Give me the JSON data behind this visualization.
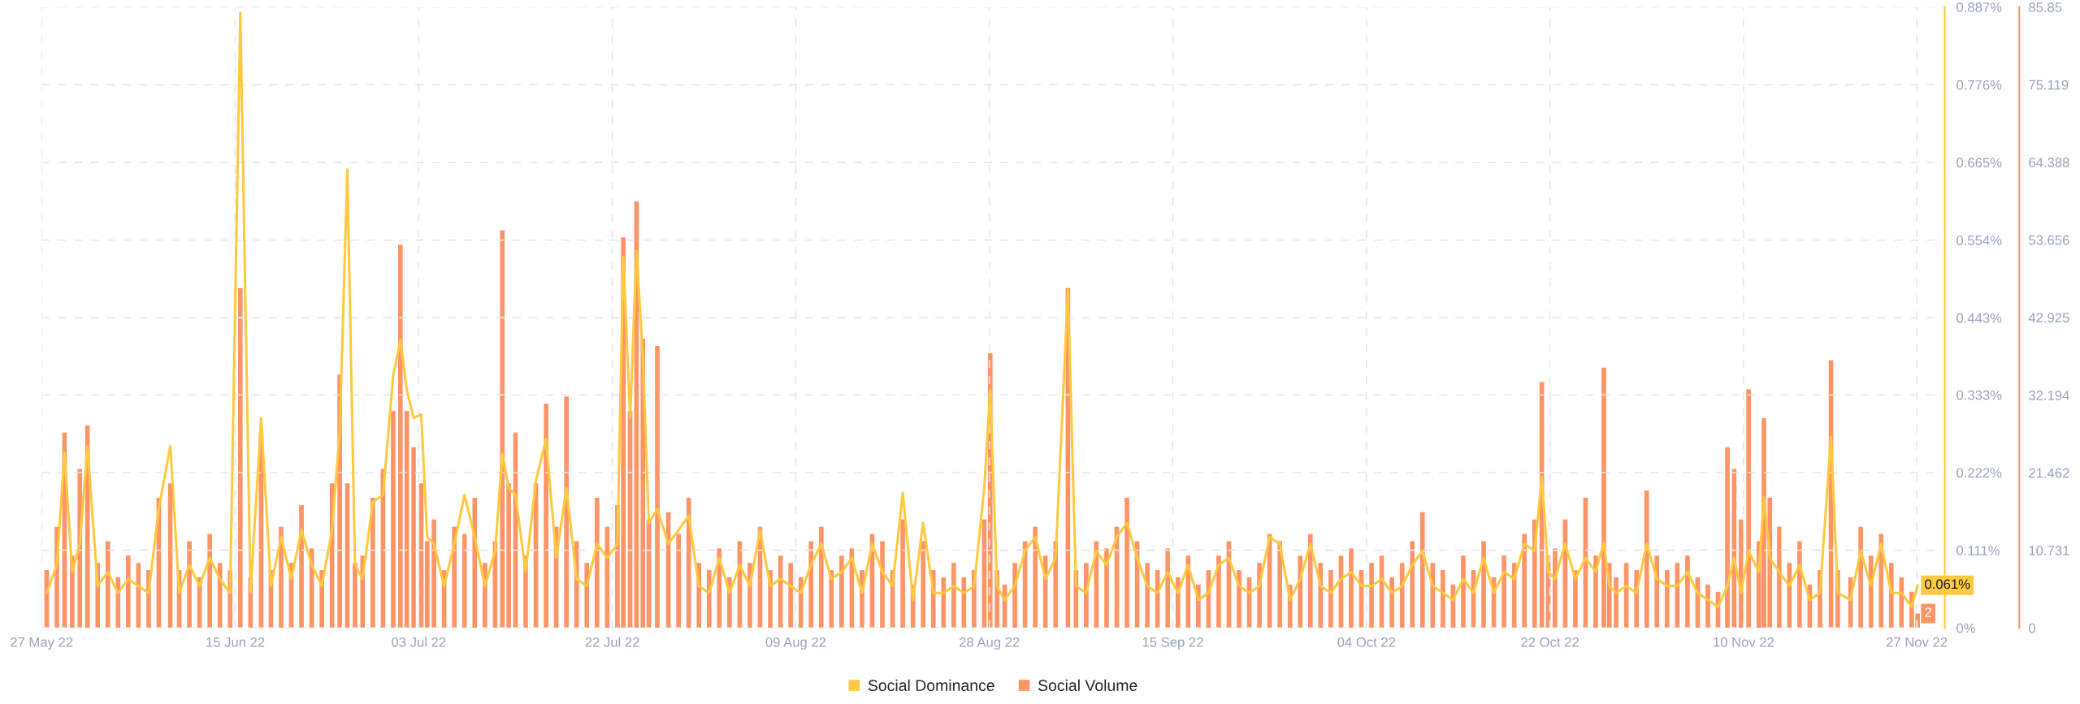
{
  "chart_data": {
    "type": "line",
    "x": [
      "2022-05-27T12:00",
      "2022-05-28T12:00",
      "2022-05-29T06:00",
      "2022-05-30T00:00",
      "2022-05-30T18:00",
      "2022-05-31T12:00",
      "2022-06-01T12:00",
      "2022-06-02T12:00",
      "2022-06-03T12:00",
      "2022-06-04T12:00",
      "2022-06-05T12:00",
      "2022-06-06T12:00",
      "2022-06-07T12:00",
      "2022-06-08T15:00",
      "2022-06-09T12:00",
      "2022-06-10T12:00",
      "2022-06-11T12:00",
      "2022-06-12T12:00",
      "2022-06-13T12:00",
      "2022-06-14T12:00",
      "2022-06-15T12:00",
      "2022-06-16T12:00",
      "2022-06-17T13:00",
      "2022-06-18T12:00",
      "2022-06-19T12:00",
      "2022-06-20T12:00",
      "2022-06-21T12:00",
      "2022-06-22T12:00",
      "2022-06-23T12:00",
      "2022-06-24T12:00",
      "2022-06-25T06:00",
      "2022-06-26T00:00",
      "2022-06-26T18:00",
      "2022-06-27T12:00",
      "2022-06-28T12:00",
      "2022-06-29T12:00",
      "2022-06-30T12:00",
      "2022-07-01T05:00",
      "2022-07-01T20:00",
      "2022-07-02T12:00",
      "2022-07-03T06:00",
      "2022-07-03T20:00",
      "2022-07-04T12:00",
      "2022-07-05T12:00",
      "2022-07-06T12:00",
      "2022-07-07T12:00",
      "2022-07-08T12:00",
      "2022-07-09T12:00",
      "2022-07-10T12:00",
      "2022-07-11T05:00",
      "2022-07-11T20:00",
      "2022-07-12T12:00",
      "2022-07-13T12:00",
      "2022-07-14T12:00",
      "2022-07-15T12:00",
      "2022-07-16T12:00",
      "2022-07-17T12:00",
      "2022-07-18T12:00",
      "2022-07-19T12:00",
      "2022-07-20T12:00",
      "2022-07-21T12:00",
      "2022-07-22T12:00",
      "2022-07-23T02:00",
      "2022-07-23T18:00",
      "2022-07-24T09:00",
      "2022-07-25T00:00",
      "2022-07-25T14:00",
      "2022-07-26T10:00",
      "2022-07-27T12:00",
      "2022-07-28T12:00",
      "2022-07-29T12:00",
      "2022-07-30T12:00",
      "2022-07-31T12:00",
      "2022-08-01T12:00",
      "2022-08-02T12:00",
      "2022-08-03T12:00",
      "2022-08-04T12:00",
      "2022-08-05T12:00",
      "2022-08-06T12:00",
      "2022-08-07T12:00",
      "2022-08-08T12:00",
      "2022-08-09T12:00",
      "2022-08-10T12:00",
      "2022-08-11T12:00",
      "2022-08-12T12:00",
      "2022-08-13T12:00",
      "2022-08-14T12:00",
      "2022-08-15T12:00",
      "2022-08-16T12:00",
      "2022-08-17T12:00",
      "2022-08-18T12:00",
      "2022-08-19T12:00",
      "2022-08-20T12:00",
      "2022-08-21T12:00",
      "2022-08-22T12:00",
      "2022-08-23T12:00",
      "2022-08-24T12:00",
      "2022-08-25T12:00",
      "2022-08-26T12:00",
      "2022-08-27T12:00",
      "2022-08-28T02:00",
      "2022-08-28T18:00",
      "2022-08-29T12:00",
      "2022-08-30T12:00",
      "2022-08-31T12:00",
      "2022-09-01T12:00",
      "2022-09-02T12:00",
      "2022-09-03T12:00",
      "2022-09-04T17:00",
      "2022-09-05T12:00",
      "2022-09-06T12:00",
      "2022-09-07T12:00",
      "2022-09-08T12:00",
      "2022-09-09T12:00",
      "2022-09-10T12:00",
      "2022-09-11T12:00",
      "2022-09-12T12:00",
      "2022-09-13T12:00",
      "2022-09-14T12:00",
      "2022-09-15T12:00",
      "2022-09-16T12:00",
      "2022-09-17T12:00",
      "2022-09-18T12:00",
      "2022-09-19T12:00",
      "2022-09-20T12:00",
      "2022-09-21T12:00",
      "2022-09-22T12:00",
      "2022-09-23T12:00",
      "2022-09-24T12:00",
      "2022-09-25T12:00",
      "2022-09-26T12:00",
      "2022-09-27T12:00",
      "2022-09-28T12:00",
      "2022-09-29T12:00",
      "2022-09-30T12:00",
      "2022-10-01T12:00",
      "2022-10-02T12:00",
      "2022-10-03T12:00",
      "2022-10-04T12:00",
      "2022-10-05T12:00",
      "2022-10-06T12:00",
      "2022-10-07T12:00",
      "2022-10-08T12:00",
      "2022-10-09T12:00",
      "2022-10-10T12:00",
      "2022-10-11T12:00",
      "2022-10-12T12:00",
      "2022-10-13T12:00",
      "2022-10-14T12:00",
      "2022-10-15T12:00",
      "2022-10-16T12:00",
      "2022-10-17T12:00",
      "2022-10-18T12:00",
      "2022-10-19T12:00",
      "2022-10-20T12:00",
      "2022-10-21T05:00",
      "2022-10-21T20:00",
      "2022-10-22T12:00",
      "2022-10-23T12:00",
      "2022-10-24T12:00",
      "2022-10-25T12:00",
      "2022-10-26T12:00",
      "2022-10-27T07:00",
      "2022-10-27T20:00",
      "2022-10-28T12:00",
      "2022-10-29T12:00",
      "2022-10-30T12:00",
      "2022-10-31T12:00",
      "2022-11-01T12:00",
      "2022-11-02T12:00",
      "2022-11-03T12:00",
      "2022-11-04T12:00",
      "2022-11-05T12:00",
      "2022-11-06T12:00",
      "2022-11-07T12:00",
      "2022-11-08T10:00",
      "2022-11-09T02:00",
      "2022-11-09T18:00",
      "2022-11-10T12:00",
      "2022-11-11T12:00",
      "2022-11-12T00:00",
      "2022-11-12T14:00",
      "2022-11-13T12:00",
      "2022-11-14T12:00",
      "2022-11-15T12:00",
      "2022-11-16T12:00",
      "2022-11-17T12:00",
      "2022-11-18T14:00",
      "2022-11-19T06:00",
      "2022-11-20T12:00",
      "2022-11-21T12:00",
      "2022-11-22T12:00",
      "2022-11-23T12:00",
      "2022-11-24T12:00",
      "2022-11-25T12:00",
      "2022-11-26T12:00",
      "2022-11-27T02:00"
    ],
    "series": [
      {
        "name": "Social Dominance",
        "color": "#ffc940",
        "values": [
          0.05,
          0.09,
          0.25,
          0.08,
          0.12,
          0.26,
          0.06,
          0.08,
          0.05,
          0.07,
          0.06,
          0.05,
          0.17,
          0.26,
          0.05,
          0.09,
          0.06,
          0.1,
          0.07,
          0.05,
          0.879,
          0.05,
          0.3,
          0.06,
          0.13,
          0.07,
          0.14,
          0.09,
          0.06,
          0.14,
          0.28,
          0.655,
          0.09,
          0.07,
          0.18,
          0.19,
          0.36,
          0.412,
          0.34,
          0.3,
          0.305,
          0.13,
          0.12,
          0.06,
          0.12,
          0.19,
          0.13,
          0.06,
          0.11,
          0.249,
          0.2,
          0.19,
          0.08,
          0.21,
          0.27,
          0.1,
          0.2,
          0.07,
          0.06,
          0.12,
          0.1,
          0.12,
          0.53,
          0.3,
          0.539,
          0.388,
          0.15,
          0.17,
          0.12,
          0.14,
          0.16,
          0.06,
          0.05,
          0.1,
          0.05,
          0.09,
          0.06,
          0.14,
          0.06,
          0.07,
          0.06,
          0.05,
          0.09,
          0.12,
          0.07,
          0.08,
          0.1,
          0.05,
          0.12,
          0.08,
          0.06,
          0.193,
          0.04,
          0.15,
          0.05,
          0.05,
          0.06,
          0.05,
          0.06,
          0.2,
          0.34,
          0.06,
          0.04,
          0.06,
          0.11,
          0.13,
          0.07,
          0.1,
          0.483,
          0.06,
          0.05,
          0.11,
          0.09,
          0.13,
          0.15,
          0.1,
          0.06,
          0.05,
          0.08,
          0.05,
          0.09,
          0.04,
          0.05,
          0.09,
          0.1,
          0.06,
          0.05,
          0.06,
          0.13,
          0.12,
          0.04,
          0.07,
          0.12,
          0.06,
          0.05,
          0.07,
          0.08,
          0.06,
          0.06,
          0.07,
          0.05,
          0.06,
          0.09,
          0.11,
          0.06,
          0.05,
          0.04,
          0.07,
          0.05,
          0.1,
          0.05,
          0.08,
          0.07,
          0.12,
          0.11,
          0.216,
          0.08,
          0.07,
          0.12,
          0.07,
          0.1,
          0.08,
          0.122,
          0.06,
          0.05,
          0.06,
          0.05,
          0.12,
          0.07,
          0.06,
          0.06,
          0.08,
          0.05,
          0.04,
          0.03,
          0.06,
          0.1,
          0.05,
          0.11,
          0.08,
          0.187,
          0.1,
          0.08,
          0.06,
          0.09,
          0.04,
          0.05,
          0.273,
          0.05,
          0.04,
          0.11,
          0.06,
          0.12,
          0.05,
          0.05,
          0.03,
          0.061
        ],
        "value_labels": [
          null,
          null,
          null,
          null,
          null,
          null,
          null,
          null,
          null,
          null,
          null,
          null,
          null,
          null,
          null,
          null,
          null,
          null,
          null,
          null,
          null,
          null,
          null,
          null,
          null,
          null,
          null,
          null,
          null,
          null,
          null,
          null,
          null,
          null,
          null,
          null,
          null,
          null,
          null,
          null,
          null,
          null,
          null,
          null,
          null,
          null,
          null,
          null,
          null,
          null,
          null,
          null,
          null,
          null,
          null,
          null,
          null,
          null,
          null,
          null,
          null,
          null,
          null,
          null,
          null,
          null,
          null,
          null,
          null,
          null,
          null,
          null,
          null,
          null,
          null,
          null,
          null,
          null,
          null,
          null,
          null,
          null,
          null,
          null,
          null,
          null,
          null,
          null,
          null,
          null,
          null,
          null,
          null,
          null,
          null,
          null,
          null,
          null,
          null,
          null,
          null,
          null,
          null,
          null,
          null,
          null,
          null,
          null,
          null,
          null,
          null,
          null,
          null,
          null,
          null,
          null,
          null,
          null,
          null,
          null,
          null,
          null,
          null,
          null,
          null,
          null,
          null,
          null,
          null,
          null,
          null,
          null,
          null,
          null,
          null,
          null,
          null,
          null,
          null,
          null,
          null,
          null,
          null,
          null,
          null,
          null,
          null,
          null,
          null,
          null,
          null,
          null,
          null,
          null,
          null,
          null,
          null,
          null,
          null,
          null,
          null,
          null,
          null,
          null,
          null,
          null,
          null,
          null,
          null,
          null,
          null,
          null,
          null,
          null,
          null,
          null,
          null,
          null,
          null,
          null,
          null,
          null,
          null,
          null,
          null,
          null,
          null,
          null,
          null,
          null,
          null,
          null,
          null,
          null,
          null,
          null,
          "0.061%"
        ]
      },
      {
        "name": "Social Volume",
        "type": "bar",
        "axis": "y2",
        "color": "#ff9466",
        "values": [
          8,
          14,
          27,
          10,
          22,
          28,
          9,
          12,
          7,
          10,
          9,
          8,
          18,
          20,
          8,
          12,
          7,
          13,
          9,
          8,
          47,
          7,
          27,
          8,
          14,
          9,
          17,
          11,
          8,
          20,
          35,
          20,
          9,
          10,
          18,
          22,
          30,
          53,
          30,
          25,
          20,
          12,
          15,
          8,
          14,
          13,
          18,
          9,
          12,
          55,
          20,
          27,
          10,
          20,
          31,
          14,
          32,
          12,
          9,
          18,
          14,
          17,
          54,
          30,
          59,
          40,
          15,
          39,
          16,
          13,
          18,
          9,
          8,
          11,
          7,
          12,
          9,
          14,
          8,
          10,
          9,
          7,
          12,
          14,
          8,
          10,
          11,
          8,
          13,
          12,
          8,
          15,
          6,
          12,
          8,
          7,
          9,
          7,
          8,
          15,
          38,
          8,
          6,
          9,
          12,
          14,
          10,
          12,
          47,
          8,
          9,
          12,
          11,
          14,
          18,
          12,
          9,
          8,
          11,
          7,
          10,
          6,
          8,
          10,
          12,
          8,
          7,
          9,
          13,
          12,
          6,
          10,
          13,
          9,
          8,
          10,
          11,
          8,
          9,
          10,
          7,
          9,
          12,
          16,
          9,
          8,
          6,
          10,
          8,
          12,
          7,
          10,
          9,
          13,
          15,
          34,
          10,
          11,
          15,
          8,
          18,
          10,
          36,
          9,
          7,
          9,
          8,
          19,
          10,
          8,
          9,
          10,
          7,
          6,
          5,
          25,
          22,
          15,
          33,
          12,
          29,
          18,
          14,
          9,
          12,
          6,
          8,
          37,
          8,
          7,
          14,
          10,
          13,
          9,
          7,
          5,
          2
        ],
        "value_labels": [
          null,
          null,
          null,
          null,
          null,
          null,
          null,
          null,
          null,
          null,
          null,
          null,
          null,
          null,
          null,
          null,
          null,
          null,
          null,
          null,
          null,
          null,
          null,
          null,
          null,
          null,
          null,
          null,
          null,
          null,
          null,
          null,
          null,
          null,
          null,
          null,
          null,
          null,
          null,
          null,
          null,
          null,
          null,
          null,
          null,
          null,
          null,
          null,
          null,
          null,
          null,
          null,
          null,
          null,
          null,
          null,
          null,
          null,
          null,
          null,
          null,
          null,
          null,
          null,
          null,
          null,
          null,
          null,
          null,
          null,
          null,
          null,
          null,
          null,
          null,
          null,
          null,
          null,
          null,
          null,
          null,
          null,
          null,
          null,
          null,
          null,
          null,
          null,
          null,
          null,
          null,
          null,
          null,
          null,
          null,
          null,
          null,
          null,
          null,
          null,
          null,
          null,
          null,
          null,
          null,
          null,
          null,
          null,
          null,
          null,
          null,
          null,
          null,
          null,
          null,
          null,
          null,
          null,
          null,
          null,
          null,
          null,
          null,
          null,
          null,
          null,
          null,
          null,
          null,
          null,
          null,
          null,
          null,
          null,
          null,
          null,
          null,
          null,
          null,
          null,
          null,
          null,
          null,
          null,
          null,
          null,
          null,
          null,
          null,
          null,
          null,
          null,
          null,
          null,
          null,
          null,
          null,
          null,
          null,
          null,
          null,
          null,
          null,
          null,
          null,
          null,
          null,
          null,
          null,
          null,
          null,
          null,
          null,
          null,
          null,
          null,
          null,
          null,
          null,
          null,
          null,
          null,
          null,
          null,
          null,
          null,
          null,
          null,
          null,
          null,
          null,
          null,
          null,
          null,
          null,
          null,
          "2"
        ]
      }
    ],
    "xlim": [
      "2022-05-27",
      "2022-11-29T18:00"
    ],
    "xticks": [
      {
        "value": "2022-05-27",
        "label": "27 May 22"
      },
      {
        "value": "2022-06-15",
        "label": "15 Jun 22"
      },
      {
        "value": "2022-07-03",
        "label": "03 Jul 22"
      },
      {
        "value": "2022-07-22",
        "label": "22 Jul 22"
      },
      {
        "value": "2022-08-09",
        "label": "09 Aug 22"
      },
      {
        "value": "2022-08-28",
        "label": "28 Aug 22"
      },
      {
        "value": "2022-09-15",
        "label": "15 Sep 22"
      },
      {
        "value": "2022-10-04",
        "label": "04 Oct 22"
      },
      {
        "value": "2022-10-22",
        "label": "22 Oct 22"
      },
      {
        "value": "2022-11-10",
        "label": "10 Nov 22"
      },
      {
        "value": "2022-11-27",
        "label": "27 Nov 22"
      }
    ],
    "ylim": [
      0,
      0.887
    ],
    "yticks": [
      {
        "value": 0,
        "label": "0%"
      },
      {
        "value": 0.111,
        "label": "0.111%"
      },
      {
        "value": 0.222,
        "label": "0.222%"
      },
      {
        "value": 0.333,
        "label": "0.333%"
      },
      {
        "value": 0.443,
        "label": "0.443%"
      },
      {
        "value": 0.554,
        "label": "0.554%"
      },
      {
        "value": 0.665,
        "label": "0.665%"
      },
      {
        "value": 0.776,
        "label": "0.776%"
      },
      {
        "value": 0.887,
        "label": "0.887%"
      }
    ],
    "y2lim": [
      0,
      85.85
    ],
    "y2ticks": [
      0,
      10.731,
      21.462,
      32.194,
      42.925,
      53.656,
      64.388,
      75.119,
      85.85
    ],
    "grid": true,
    "legend": "bottom",
    "marker": "none",
    "line_style": "solid"
  }
}
